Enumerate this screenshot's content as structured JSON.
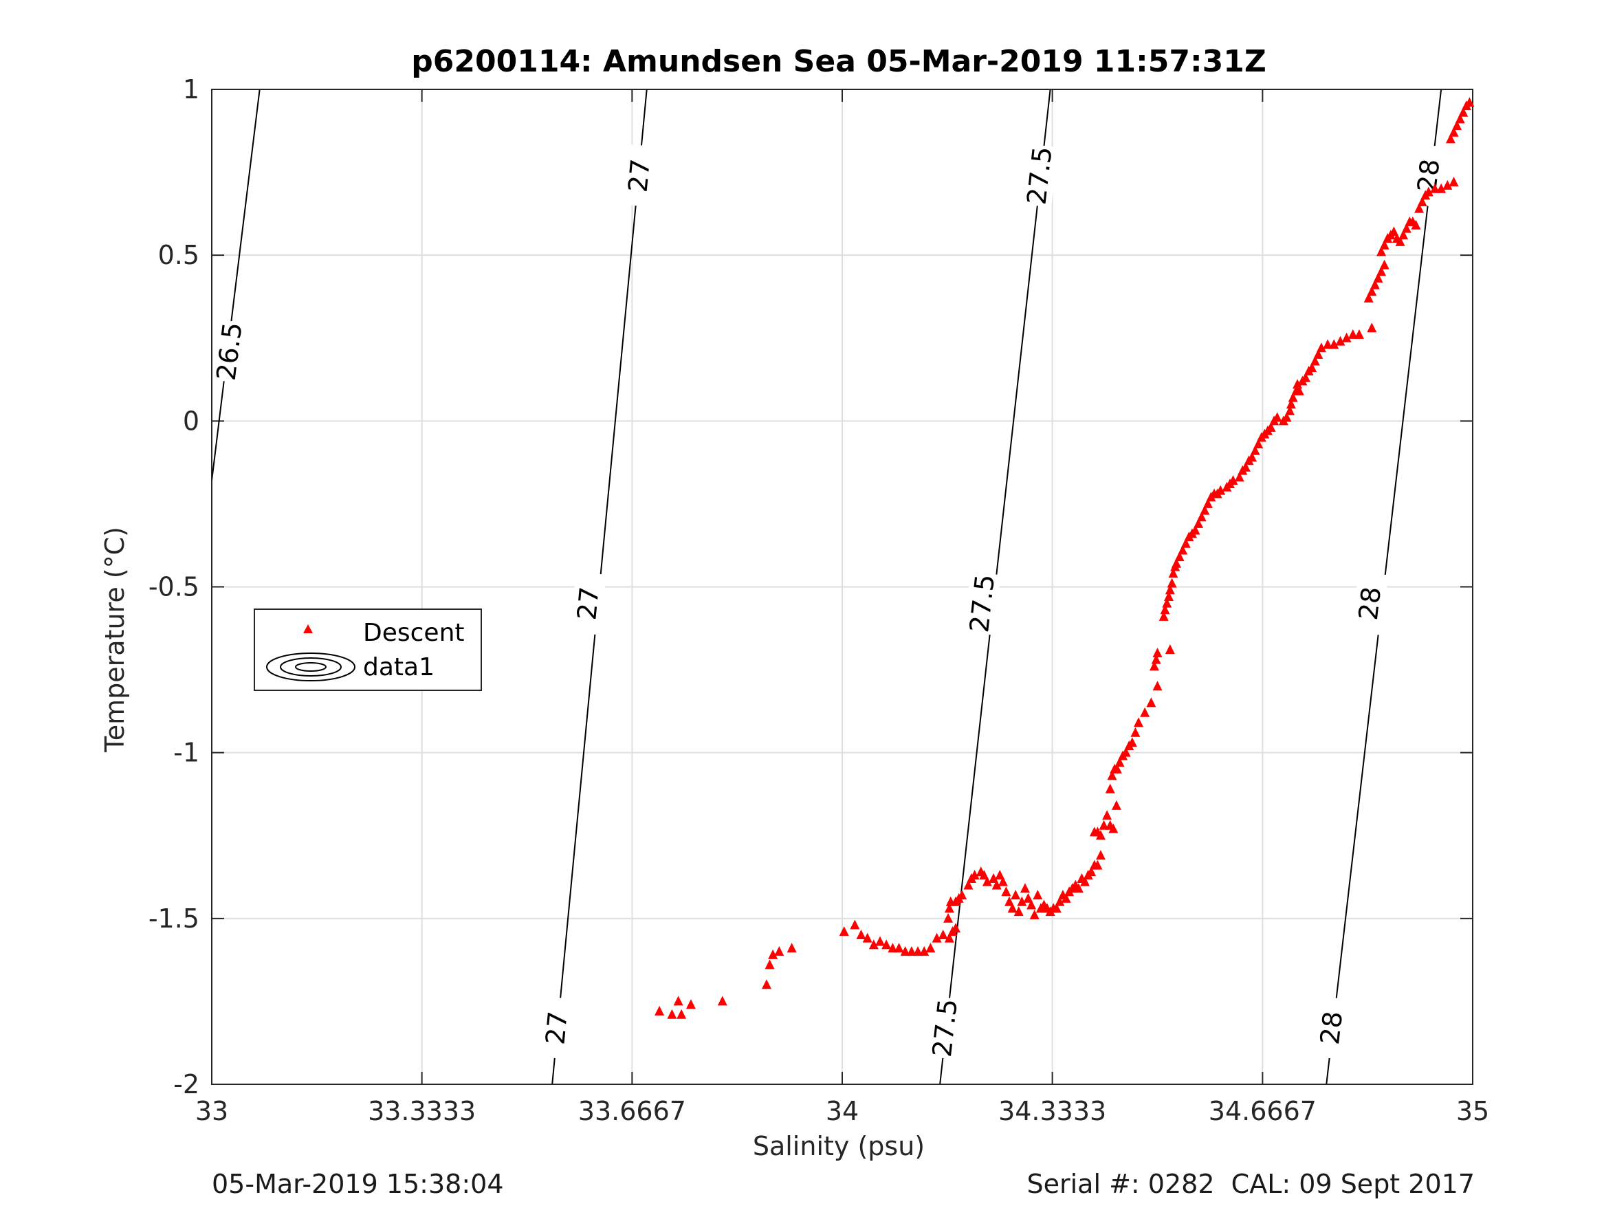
{
  "chart_data": {
    "type": "scatter",
    "title": "p6200114: Amundsen Sea 05-Mar-2019 11:57:31Z",
    "xlabel": "Salinity (psu)",
    "ylabel": "Temperature (°C)",
    "xlim": [
      33,
      35
    ],
    "ylim": [
      -2,
      1
    ],
    "grid": true,
    "x_ticks": [
      "33",
      "33.3333",
      "33.6667",
      "34",
      "34.3333",
      "34.6667",
      "35"
    ],
    "y_ticks": [
      "1",
      "0.5",
      "0",
      "-0.5",
      "-1",
      "-1.5",
      "-2"
    ],
    "legend": {
      "placement": "middle-left",
      "entries": [
        "Descent",
        "data1"
      ]
    },
    "contours": [
      {
        "label": "26.5",
        "points": [
          [
            33.0,
            -0.18
          ],
          [
            33.076,
            1.0
          ]
        ],
        "labels_at": [
          [
            33.028,
            0.21
          ]
        ]
      },
      {
        "label": "27",
        "points": [
          [
            33.54,
            -2.0
          ],
          [
            33.69,
            1.0
          ]
        ],
        "labels_at": [
          [
            33.547,
            -1.83
          ],
          [
            33.597,
            -0.55
          ],
          [
            33.678,
            0.74
          ]
        ]
      },
      {
        "label": "27.5",
        "points": [
          [
            34.155,
            -2.0
          ],
          [
            34.33,
            1.0
          ]
        ],
        "labels_at": [
          [
            34.163,
            -1.83
          ],
          [
            34.222,
            -0.55
          ],
          [
            34.313,
            0.74
          ]
        ]
      },
      {
        "label": "28",
        "points": [
          [
            34.768,
            -2.0
          ],
          [
            34.95,
            1.0
          ]
        ],
        "labels_at": [
          [
            34.776,
            -1.83
          ],
          [
            34.837,
            -0.55
          ],
          [
            34.93,
            0.74
          ]
        ]
      }
    ],
    "series": [
      {
        "name": "Descent",
        "marker": "triangle",
        "color": "#ff0000",
        "points": [
          [
            33.71,
            -1.78
          ],
          [
            33.73,
            -1.79
          ],
          [
            33.74,
            -1.75
          ],
          [
            33.745,
            -1.79
          ],
          [
            33.76,
            -1.76
          ],
          [
            33.81,
            -1.75
          ],
          [
            33.88,
            -1.7
          ],
          [
            33.89,
            -1.61
          ],
          [
            33.885,
            -1.64
          ],
          [
            33.9,
            -1.6
          ],
          [
            33.92,
            -1.59
          ],
          [
            34.003,
            -1.54
          ],
          [
            34.02,
            -1.52
          ],
          [
            34.03,
            -1.55
          ],
          [
            34.04,
            -1.56
          ],
          [
            34.05,
            -1.58
          ],
          [
            34.06,
            -1.57
          ],
          [
            34.07,
            -1.58
          ],
          [
            34.08,
            -1.59
          ],
          [
            34.09,
            -1.59
          ],
          [
            34.1,
            -1.6
          ],
          [
            34.11,
            -1.6
          ],
          [
            34.12,
            -1.6
          ],
          [
            34.13,
            -1.6
          ],
          [
            34.14,
            -1.59
          ],
          [
            34.15,
            -1.56
          ],
          [
            34.16,
            -1.55
          ],
          [
            34.17,
            -1.56
          ],
          [
            34.175,
            -1.54
          ],
          [
            34.18,
            -1.53
          ],
          [
            34.168,
            -1.5
          ],
          [
            34.17,
            -1.47
          ],
          [
            34.172,
            -1.45
          ],
          [
            34.18,
            -1.45
          ],
          [
            34.185,
            -1.44
          ],
          [
            34.19,
            -1.43
          ],
          [
            34.2,
            -1.4
          ],
          [
            34.205,
            -1.38
          ],
          [
            34.21,
            -1.37
          ],
          [
            34.22,
            -1.36
          ],
          [
            34.225,
            -1.37
          ],
          [
            34.23,
            -1.39
          ],
          [
            34.24,
            -1.38
          ],
          [
            34.245,
            -1.4
          ],
          [
            34.25,
            -1.37
          ],
          [
            34.255,
            -1.39
          ],
          [
            34.26,
            -1.42
          ],
          [
            34.265,
            -1.45
          ],
          [
            34.27,
            -1.47
          ],
          [
            34.275,
            -1.43
          ],
          [
            34.28,
            -1.48
          ],
          [
            34.285,
            -1.45
          ],
          [
            34.29,
            -1.41
          ],
          [
            34.295,
            -1.44
          ],
          [
            34.3,
            -1.46
          ],
          [
            34.305,
            -1.49
          ],
          [
            34.31,
            -1.43
          ],
          [
            34.315,
            -1.47
          ],
          [
            34.32,
            -1.46
          ],
          [
            34.325,
            -1.47
          ],
          [
            34.33,
            -1.48
          ],
          [
            34.335,
            -1.47
          ],
          [
            34.34,
            -1.47
          ],
          [
            34.345,
            -1.45
          ],
          [
            34.35,
            -1.43
          ],
          [
            34.355,
            -1.44
          ],
          [
            34.36,
            -1.42
          ],
          [
            34.365,
            -1.41
          ],
          [
            34.37,
            -1.4
          ],
          [
            34.375,
            -1.41
          ],
          [
            34.38,
            -1.38
          ],
          [
            34.385,
            -1.39
          ],
          [
            34.39,
            -1.37
          ],
          [
            34.395,
            -1.36
          ],
          [
            34.4,
            -1.34
          ],
          [
            34.405,
            -1.34
          ],
          [
            34.41,
            -1.31
          ],
          [
            34.4,
            -1.24
          ],
          [
            34.405,
            -1.24
          ],
          [
            34.41,
            -1.25
          ],
          [
            34.415,
            -1.22
          ],
          [
            34.42,
            -1.19
          ],
          [
            34.425,
            -1.22
          ],
          [
            34.43,
            -1.23
          ],
          [
            34.435,
            -1.16
          ],
          [
            34.425,
            -1.11
          ],
          [
            34.428,
            -1.07
          ],
          [
            34.432,
            -1.05
          ],
          [
            34.436,
            -1.05
          ],
          [
            34.44,
            -1.03
          ],
          [
            34.445,
            -1.01
          ],
          [
            34.45,
            -1.0
          ],
          [
            34.455,
            -0.98
          ],
          [
            34.46,
            -0.97
          ],
          [
            34.465,
            -0.94
          ],
          [
            34.47,
            -0.91
          ],
          [
            34.48,
            -0.88
          ],
          [
            34.49,
            -0.85
          ],
          [
            34.5,
            -0.8
          ],
          [
            34.495,
            -0.74
          ],
          [
            34.498,
            -0.72
          ],
          [
            34.5,
            -0.7
          ],
          [
            34.52,
            -0.69
          ],
          [
            34.51,
            -0.59
          ],
          [
            34.512,
            -0.57
          ],
          [
            34.515,
            -0.55
          ],
          [
            34.518,
            -0.53
          ],
          [
            34.52,
            -0.51
          ],
          [
            34.523,
            -0.49
          ],
          [
            34.525,
            -0.46
          ],
          [
            34.528,
            -0.44
          ],
          [
            34.53,
            -0.43
          ],
          [
            34.535,
            -0.41
          ],
          [
            34.54,
            -0.39
          ],
          [
            34.545,
            -0.37
          ],
          [
            34.55,
            -0.35
          ],
          [
            34.555,
            -0.34
          ],
          [
            34.56,
            -0.33
          ],
          [
            34.565,
            -0.31
          ],
          [
            34.57,
            -0.29
          ],
          [
            34.575,
            -0.27
          ],
          [
            34.58,
            -0.25
          ],
          [
            34.585,
            -0.23
          ],
          [
            34.59,
            -0.22
          ],
          [
            34.595,
            -0.22
          ],
          [
            34.6,
            -0.21
          ],
          [
            34.61,
            -0.2
          ],
          [
            34.615,
            -0.19
          ],
          [
            34.62,
            -0.18
          ],
          [
            34.63,
            -0.17
          ],
          [
            34.635,
            -0.15
          ],
          [
            34.64,
            -0.14
          ],
          [
            34.645,
            -0.12
          ],
          [
            34.65,
            -0.11
          ],
          [
            34.655,
            -0.09
          ],
          [
            34.66,
            -0.07
          ],
          [
            34.665,
            -0.05
          ],
          [
            34.67,
            -0.04
          ],
          [
            34.675,
            -0.03
          ],
          [
            34.68,
            -0.02
          ],
          [
            34.685,
            0.0
          ],
          [
            34.69,
            0.01
          ],
          [
            34.7,
            0.0
          ],
          [
            34.705,
            0.01
          ],
          [
            34.71,
            0.03
          ],
          [
            34.712,
            0.05
          ],
          [
            34.715,
            0.07
          ],
          [
            34.72,
            0.09
          ],
          [
            34.722,
            0.11
          ],
          [
            34.725,
            0.09
          ],
          [
            34.73,
            0.12
          ],
          [
            34.735,
            0.13
          ],
          [
            34.74,
            0.15
          ],
          [
            34.745,
            0.16
          ],
          [
            34.75,
            0.18
          ],
          [
            34.755,
            0.2
          ],
          [
            34.76,
            0.22
          ],
          [
            34.77,
            0.23
          ],
          [
            34.78,
            0.23
          ],
          [
            34.79,
            0.24
          ],
          [
            34.8,
            0.25
          ],
          [
            34.81,
            0.26
          ],
          [
            34.82,
            0.26
          ],
          [
            34.84,
            0.28
          ],
          [
            34.835,
            0.37
          ],
          [
            34.84,
            0.39
          ],
          [
            34.845,
            0.41
          ],
          [
            34.85,
            0.43
          ],
          [
            34.855,
            0.45
          ],
          [
            34.86,
            0.47
          ],
          [
            34.855,
            0.51
          ],
          [
            34.86,
            0.53
          ],
          [
            34.865,
            0.55
          ],
          [
            34.87,
            0.56
          ],
          [
            34.875,
            0.57
          ],
          [
            34.88,
            0.55
          ],
          [
            34.885,
            0.54
          ],
          [
            34.89,
            0.56
          ],
          [
            34.895,
            0.58
          ],
          [
            34.9,
            0.6
          ],
          [
            34.905,
            0.6
          ],
          [
            34.91,
            0.59
          ],
          [
            34.915,
            0.64
          ],
          [
            34.92,
            0.66
          ],
          [
            34.925,
            0.68
          ],
          [
            34.93,
            0.69
          ],
          [
            34.94,
            0.7
          ],
          [
            34.95,
            0.7
          ],
          [
            34.96,
            0.71
          ],
          [
            34.97,
            0.72
          ],
          [
            34.965,
            0.85
          ],
          [
            34.97,
            0.87
          ],
          [
            34.975,
            0.89
          ],
          [
            34.98,
            0.91
          ],
          [
            34.985,
            0.93
          ],
          [
            34.99,
            0.95
          ],
          [
            34.995,
            0.96
          ]
        ]
      },
      {
        "name": "data1",
        "marker": "contour",
        "color": "#000000",
        "points": []
      }
    ]
  },
  "footer": {
    "left": "05-Mar-2019 15:38:04",
    "right": "Serial #: 0282  CAL: 09 Sept 2017"
  }
}
